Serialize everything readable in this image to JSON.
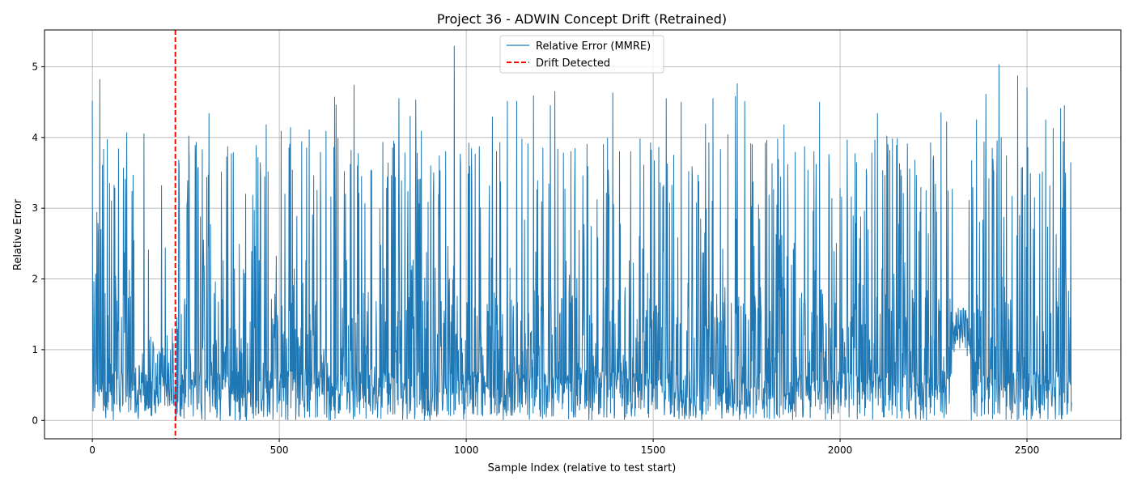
{
  "chart_data": {
    "type": "line",
    "title": "Project 36 - ADWIN Concept Drift (Retrained)",
    "xlabel": "Sample Index (relative to test start)",
    "ylabel": "Relative Error",
    "xlim": [
      -128,
      2751
    ],
    "ylim": [
      -0.26,
      5.52
    ],
    "x_ticks": [
      0,
      500,
      1000,
      1500,
      2000,
      2500
    ],
    "y_ticks": [
      0,
      1,
      2,
      3,
      4,
      5
    ],
    "grid": true,
    "legend_position": "top-center",
    "colors": {
      "series": "#1f77b4",
      "drift": "#ff0000",
      "grid": "#b0b0b0"
    },
    "n_samples": 2620,
    "drift_x": 222,
    "series": [
      {
        "name": "Relative Error (MMRE)",
        "style": "solid",
        "x_start": 0,
        "x_end": 2619,
        "y_min": 0.0,
        "y_max": 5.29,
        "peaks": [
          [
            0,
            4.52
          ],
          [
            20,
            4.82
          ],
          [
            40,
            3.97
          ],
          [
            70,
            3.84
          ],
          [
            92,
            4.07
          ],
          [
            138,
            4.05
          ],
          [
            150,
            2.41
          ],
          [
            185,
            3.32
          ],
          [
            195,
            2.44
          ],
          [
            232,
            3.62
          ],
          [
            258,
            4.02
          ],
          [
            275,
            3.89
          ],
          [
            312,
            4.34
          ],
          [
            345,
            3.51
          ],
          [
            372,
            3.77
          ],
          [
            410,
            3.2
          ],
          [
            450,
            3.44
          ],
          [
            465,
            4.18
          ],
          [
            505,
            4.09
          ],
          [
            530,
            4.14
          ],
          [
            560,
            3.94
          ],
          [
            580,
            4.11
          ],
          [
            610,
            3.79
          ],
          [
            625,
            4.09
          ],
          [
            648,
            4.57
          ],
          [
            652,
            4.46
          ],
          [
            690,
            3.62
          ],
          [
            700,
            4.74
          ],
          [
            720,
            3.45
          ],
          [
            745,
            3.54
          ],
          [
            810,
            3.44
          ],
          [
            820,
            4.55
          ],
          [
            850,
            4.3
          ],
          [
            865,
            4.53
          ],
          [
            880,
            4.09
          ],
          [
            905,
            3.6
          ],
          [
            928,
            3.74
          ],
          [
            945,
            3.8
          ],
          [
            968,
            5.29
          ],
          [
            985,
            3.61
          ],
          [
            1015,
            3.33
          ],
          [
            1035,
            3.87
          ],
          [
            1070,
            4.29
          ],
          [
            1090,
            3.93
          ],
          [
            1110,
            4.51
          ],
          [
            1135,
            4.51
          ],
          [
            1165,
            3.91
          ],
          [
            1180,
            4.59
          ],
          [
            1205,
            3.85
          ],
          [
            1225,
            4.45
          ],
          [
            1237,
            4.65
          ],
          [
            1260,
            3.78
          ],
          [
            1290,
            3.22
          ],
          [
            1325,
            3.59
          ],
          [
            1350,
            3.12
          ],
          [
            1380,
            3.54
          ],
          [
            1392,
            4.63
          ],
          [
            1410,
            3.8
          ],
          [
            1440,
            3.8
          ],
          [
            1475,
            3.61
          ],
          [
            1495,
            3.82
          ],
          [
            1515,
            3.86
          ],
          [
            1535,
            4.55
          ],
          [
            1555,
            3.75
          ],
          [
            1575,
            4.5
          ],
          [
            1595,
            3.52
          ],
          [
            1620,
            3.47
          ],
          [
            1640,
            4.19
          ],
          [
            1660,
            4.55
          ],
          [
            1680,
            3.83
          ],
          [
            1700,
            4.04
          ],
          [
            1720,
            4.58
          ],
          [
            1725,
            4.76
          ],
          [
            1745,
            4.51
          ],
          [
            1765,
            3.9
          ],
          [
            1800,
            3.92
          ],
          [
            1835,
            3.69
          ],
          [
            1850,
            4.18
          ],
          [
            1880,
            3.79
          ],
          [
            1905,
            3.87
          ],
          [
            1930,
            3.8
          ],
          [
            1945,
            4.5
          ],
          [
            1970,
            3.76
          ],
          [
            2000,
            3.28
          ],
          [
            2040,
            3.77
          ],
          [
            2070,
            3.55
          ],
          [
            2085,
            3.78
          ],
          [
            2100,
            4.34
          ],
          [
            2125,
            4.02
          ],
          [
            2140,
            3.98
          ],
          [
            2180,
            3.91
          ],
          [
            2200,
            3.68
          ],
          [
            2230,
            3.25
          ],
          [
            2255,
            3.34
          ],
          [
            2270,
            4.35
          ],
          [
            2285,
            4.22
          ],
          [
            2300,
            3.27
          ],
          [
            2345,
            3.11
          ],
          [
            2365,
            4.25
          ],
          [
            2390,
            4.61
          ],
          [
            2410,
            3.5
          ],
          [
            2425,
            5.03
          ],
          [
            2445,
            3.74
          ],
          [
            2460,
            3.17
          ],
          [
            2475,
            4.87
          ],
          [
            2500,
            4.7
          ],
          [
            2520,
            3.15
          ],
          [
            2550,
            4.25
          ],
          [
            2570,
            4.13
          ],
          [
            2590,
            4.41
          ],
          [
            2600,
            4.45
          ],
          [
            2615,
            1.45
          ]
        ]
      },
      {
        "name": "Drift Detected",
        "style": "dashed",
        "x": 222
      }
    ]
  }
}
